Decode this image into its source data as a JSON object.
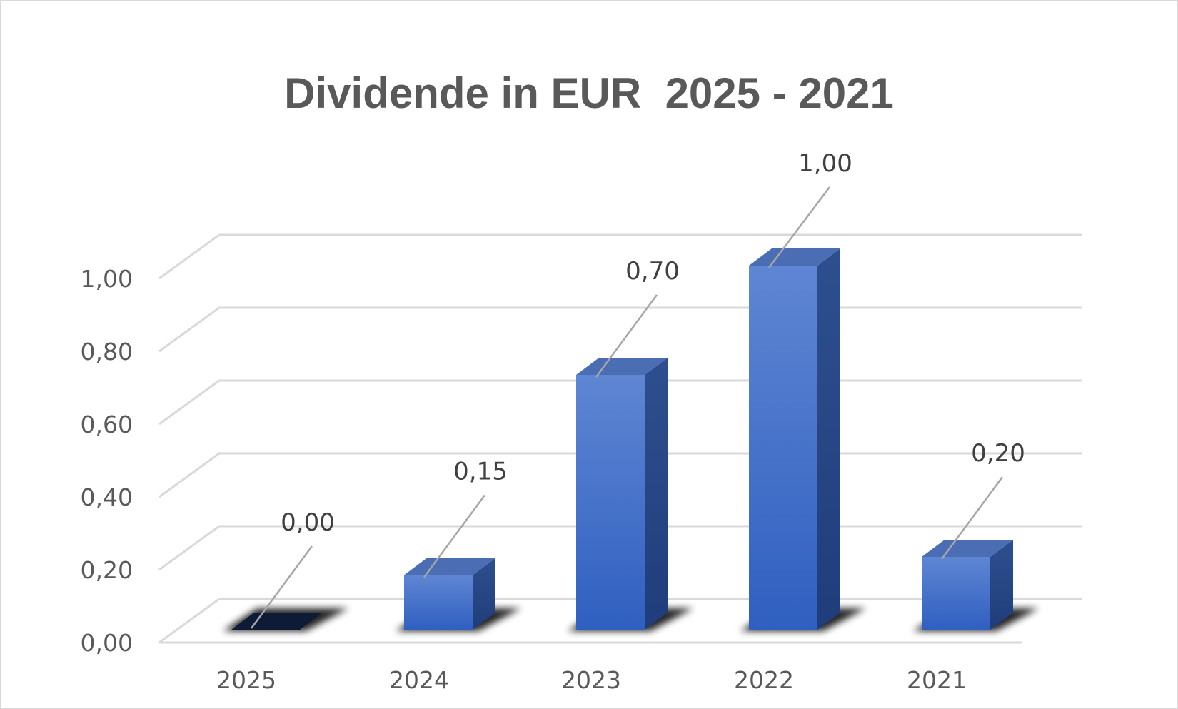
{
  "chart_data": {
    "type": "bar",
    "title": "Dividende in EUR  2025 - 2021",
    "xlabel": "",
    "ylabel": "",
    "categories": [
      "2025",
      "2024",
      "2023",
      "2022",
      "2021"
    ],
    "values": [
      0.0,
      0.15,
      0.7,
      1.0,
      0.2
    ],
    "data_labels": [
      "0,00",
      "0,15",
      "0,70",
      "1,00",
      "0,20"
    ],
    "yticks": [
      0,
      0.2,
      0.4,
      0.6,
      0.8,
      1.0
    ],
    "ytick_labels": [
      "0,00",
      "0,20",
      "0,40",
      "0,60",
      "0,80",
      "1,00"
    ],
    "ylim": [
      0,
      1.0
    ],
    "grid": true,
    "legend": "none",
    "style": "3d-column",
    "colors": {
      "bar_front_top": "#5f86d3",
      "bar_front_bottom": "#2f5fc0",
      "bar_side": "#23427f",
      "bar_top": "#4a6db4",
      "zero_bar": "#0e1b36",
      "gridline": "#d9d9d9",
      "text": "#595959"
    }
  }
}
